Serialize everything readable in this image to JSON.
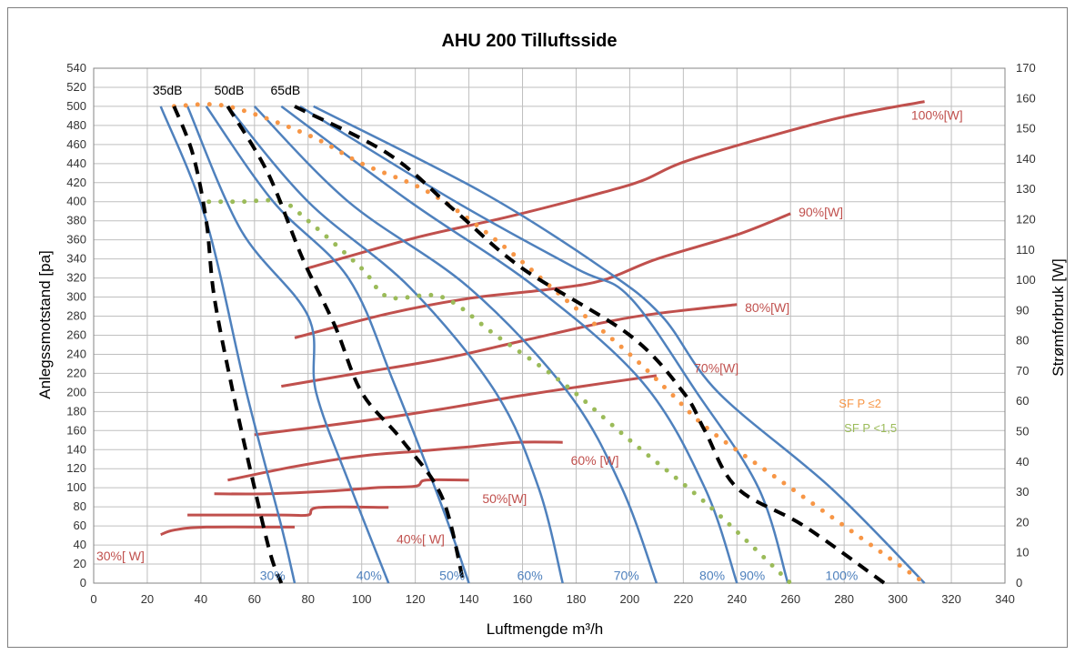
{
  "chart_data": {
    "type": "line",
    "title": "AHU 200 Tilluftsside",
    "xlabel": "Luftmengde m³/h",
    "ylabel": "Anlegssmotstand [pa]",
    "y2label": "Strømforbruk [W]",
    "xlim": [
      0,
      340
    ],
    "ylim": [
      0,
      540
    ],
    "y2lim": [
      0,
      170
    ],
    "x_ticks": [
      0,
      20,
      40,
      60,
      80,
      100,
      120,
      140,
      160,
      180,
      200,
      220,
      240,
      260,
      280,
      300,
      320,
      340
    ],
    "y_ticks": [
      0,
      20,
      40,
      60,
      80,
      100,
      120,
      140,
      160,
      180,
      200,
      220,
      240,
      260,
      280,
      300,
      320,
      340,
      360,
      380,
      400,
      420,
      440,
      460,
      480,
      500,
      520,
      540
    ],
    "y2_ticks": [
      0,
      10,
      20,
      30,
      40,
      50,
      60,
      70,
      80,
      90,
      100,
      110,
      120,
      130,
      140,
      150,
      160,
      170
    ],
    "grid": true,
    "fan_curves": [
      {
        "label": "30%",
        "color": "#4f81bd",
        "points": [
          [
            25,
            500
          ],
          [
            42,
            380
          ],
          [
            57,
            200
          ],
          [
            70,
            60
          ],
          [
            75,
            0
          ]
        ],
        "label_at": [
          62,
          8
        ]
      },
      {
        "label": "40%",
        "color": "#4f81bd",
        "points": [
          [
            35,
            500
          ],
          [
            55,
            370
          ],
          [
            80,
            280
          ],
          [
            83,
            200
          ],
          [
            96,
            100
          ],
          [
            110,
            0
          ]
        ],
        "label_at": [
          98,
          8
        ]
      },
      {
        "label": "50%",
        "color": "#4f81bd",
        "points": [
          [
            42,
            500
          ],
          [
            67,
            400
          ],
          [
            95,
            320
          ],
          [
            112,
            210
          ],
          [
            130,
            80
          ],
          [
            140,
            0
          ]
        ],
        "label_at": [
          129,
          8
        ]
      },
      {
        "label": "60%",
        "color": "#4f81bd",
        "points": [
          [
            50,
            500
          ],
          [
            80,
            400
          ],
          [
            118,
            310
          ],
          [
            150,
            200
          ],
          [
            166,
            100
          ],
          [
            175,
            0
          ]
        ],
        "label_at": [
          158,
          8
        ]
      },
      {
        "label": "70%",
        "color": "#4f81bd",
        "points": [
          [
            60,
            500
          ],
          [
            95,
            400
          ],
          [
            140,
            310
          ],
          [
            177,
            200
          ],
          [
            197,
            100
          ],
          [
            210,
            0
          ]
        ],
        "label_at": [
          194,
          8
        ]
      },
      {
        "label": "80%",
        "color": "#4f81bd",
        "points": [
          [
            70,
            500
          ],
          [
            118,
            400
          ],
          [
            165,
            310
          ],
          [
            205,
            210
          ],
          [
            228,
            100
          ],
          [
            240,
            0
          ]
        ],
        "label_at": [
          226,
          8
        ]
      },
      {
        "label": "90%",
        "color": "#4f81bd",
        "points": [
          [
            77,
            500
          ],
          [
            135,
            400
          ],
          [
            180,
            330
          ],
          [
            200,
            300
          ],
          [
            225,
            200
          ],
          [
            248,
            100
          ],
          [
            259,
            0
          ]
        ],
        "label_at": [
          241,
          8
        ]
      },
      {
        "label": "100%",
        "color": "#4f81bd",
        "points": [
          [
            82,
            500
          ],
          [
            145,
            410
          ],
          [
            190,
            330
          ],
          [
            212,
            280
          ],
          [
            233,
            200
          ],
          [
            275,
            100
          ],
          [
            310,
            0
          ]
        ],
        "label_at": [
          273,
          8
        ]
      }
    ],
    "power_curves": [
      {
        "label": "30%[ W]",
        "color": "#c0504d",
        "points": [
          [
            25,
            16
          ],
          [
            30,
            17.5
          ],
          [
            42,
            18.5
          ],
          [
            75,
            18.5
          ]
        ],
        "label_at": [
          1,
          9
        ]
      },
      {
        "label": "40%[ W]",
        "color": "#c0504d",
        "points": [
          [
            35,
            22.5
          ],
          [
            70,
            22.5
          ],
          [
            80,
            22.5
          ],
          [
            84,
            25
          ],
          [
            110,
            25
          ]
        ],
        "label_at": [
          113,
          14.5
        ]
      },
      {
        "label": "50%[W]",
        "color": "#c0504d",
        "points": [
          [
            45,
            29.5
          ],
          [
            65,
            29.5
          ],
          [
            90,
            30.5
          ],
          [
            105,
            31.5
          ],
          [
            120,
            32
          ],
          [
            124,
            34
          ],
          [
            140,
            34
          ]
        ],
        "label_at": [
          145,
          28
        ]
      },
      {
        "label": "60% [W]",
        "color": "#c0504d",
        "points": [
          [
            50,
            34
          ],
          [
            75,
            38.5
          ],
          [
            100,
            42
          ],
          [
            120,
            43.5
          ],
          [
            140,
            45
          ],
          [
            158,
            46.5
          ],
          [
            175,
            46.5
          ]
        ],
        "label_at": [
          178,
          40.5
        ]
      },
      {
        "label": "70%[W]",
        "color": "#c0504d",
        "points": [
          [
            60,
            49
          ],
          [
            100,
            53.5
          ],
          [
            130,
            57.5
          ],
          [
            160,
            62
          ],
          [
            190,
            66
          ],
          [
            210,
            68.5
          ]
        ],
        "label_at": [
          224,
          71
        ]
      },
      {
        "label": "80%[W]",
        "color": "#c0504d",
        "points": [
          [
            70,
            65
          ],
          [
            100,
            69.5
          ],
          [
            130,
            74
          ],
          [
            160,
            80
          ],
          [
            190,
            86
          ],
          [
            210,
            89
          ],
          [
            240,
            92
          ]
        ],
        "label_at": [
          243,
          91
        ]
      },
      {
        "label": "90%[W]",
        "color": "#c0504d",
        "points": [
          [
            75,
            81
          ],
          [
            110,
            89
          ],
          [
            140,
            94
          ],
          [
            170,
            97
          ],
          [
            190,
            100
          ],
          [
            210,
            107
          ],
          [
            240,
            115
          ],
          [
            260,
            122
          ]
        ],
        "label_at": [
          263,
          122.5
        ]
      },
      {
        "label": "100%[W]",
        "color": "#c0504d",
        "points": [
          [
            80,
            104
          ],
          [
            120,
            114
          ],
          [
            155,
            121
          ],
          [
            190,
            129
          ],
          [
            205,
            133
          ],
          [
            220,
            139
          ],
          [
            250,
            147
          ],
          [
            280,
            154
          ],
          [
            310,
            159
          ]
        ],
        "label_at": [
          305,
          154.5
        ]
      }
    ],
    "noise_curves": [
      {
        "label": "35dB",
        "color": "#000000",
        "points": [
          [
            30,
            500
          ],
          [
            37,
            450
          ],
          [
            42,
            380
          ],
          [
            45,
            300
          ],
          [
            52,
            200
          ],
          [
            60,
            100
          ],
          [
            66,
            30
          ],
          [
            70,
            0
          ]
        ],
        "label_at": [
          22,
          517
        ]
      },
      {
        "label": "50dB",
        "color": "#000000",
        "points": [
          [
            50,
            500
          ],
          [
            65,
            430
          ],
          [
            78,
            340
          ],
          [
            90,
            270
          ],
          [
            100,
            200
          ],
          [
            115,
            150
          ],
          [
            130,
            90
          ],
          [
            138,
            0
          ]
        ],
        "label_at": [
          45,
          517
        ]
      },
      {
        "label": "65dB",
        "color": "#000000",
        "points": [
          [
            75,
            500
          ],
          [
            110,
            450
          ],
          [
            135,
            390
          ],
          [
            160,
            330
          ],
          [
            200,
            260
          ],
          [
            220,
            200
          ],
          [
            228,
            160
          ],
          [
            240,
            100
          ],
          [
            265,
            60
          ],
          [
            295,
            0
          ]
        ],
        "label_at": [
          66,
          517
        ]
      }
    ],
    "sfp_curves": [
      {
        "label": "SF P ≤2",
        "color": "#f79646",
        "points": [
          [
            30,
            500
          ],
          [
            50,
            500
          ],
          [
            80,
            470
          ],
          [
            100,
            440
          ],
          [
            125,
            410
          ],
          [
            150,
            360
          ],
          [
            175,
            300
          ],
          [
            200,
            240
          ],
          [
            215,
            200
          ],
          [
            230,
            160
          ],
          [
            260,
            100
          ],
          [
            310,
            0
          ]
        ],
        "label_at": [
          278,
          188
        ]
      },
      {
        "label": "SF P <1,5",
        "color": "#9bbb59",
        "points": [
          [
            43,
            400
          ],
          [
            55,
            400
          ],
          [
            70,
            400
          ],
          [
            80,
            380
          ],
          [
            100,
            330
          ],
          [
            110,
            300
          ],
          [
            130,
            300
          ],
          [
            150,
            260
          ],
          [
            175,
            210
          ],
          [
            200,
            150
          ],
          [
            230,
            80
          ],
          [
            260,
            0
          ]
        ],
        "label_at": [
          280,
          162
        ]
      }
    ]
  }
}
